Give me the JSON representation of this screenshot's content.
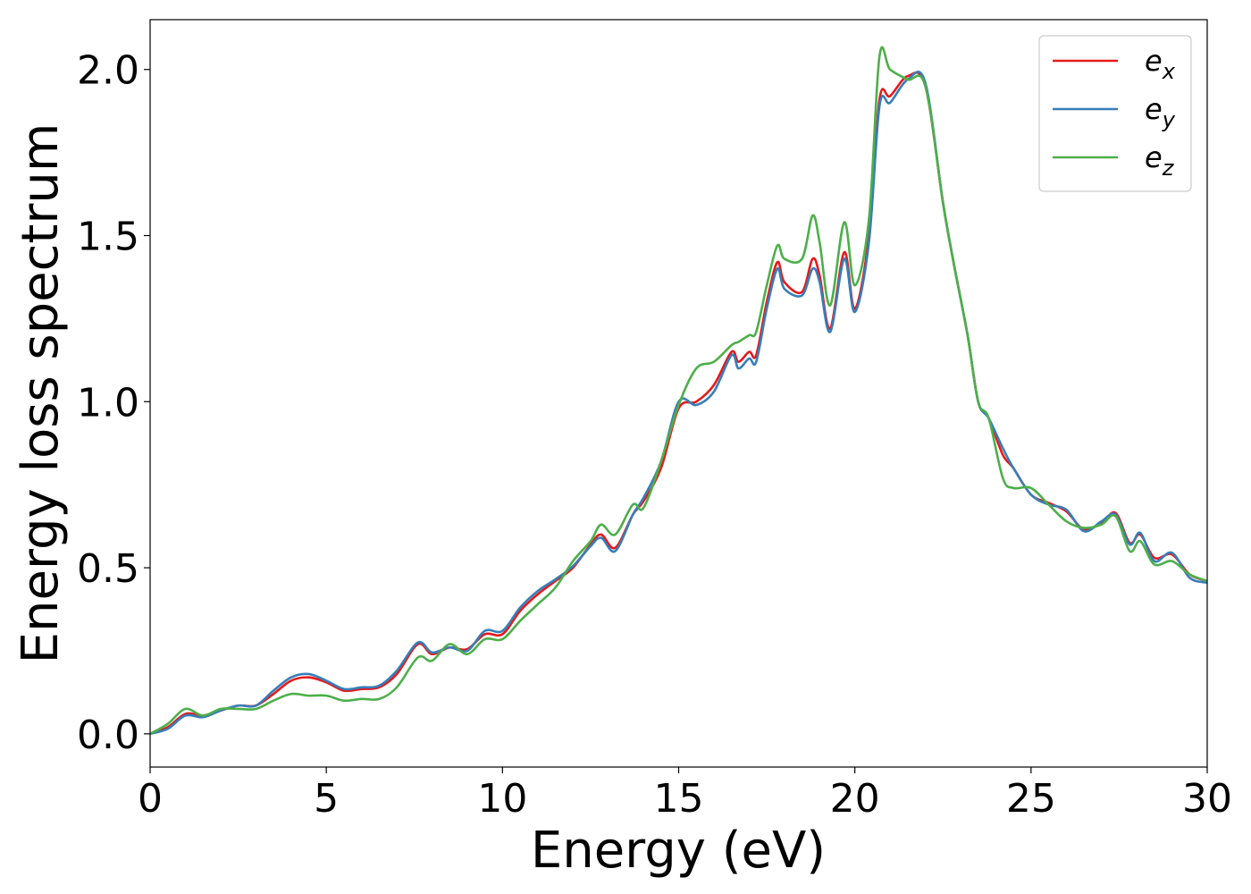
{
  "chart_data": {
    "type": "line",
    "title": "",
    "xlabel": "Energy (eV)",
    "ylabel": "Energy loss spectrum",
    "xlim": [
      0,
      30
    ],
    "ylim": [
      -0.1,
      2.15
    ],
    "xticks": [
      0,
      5,
      10,
      15,
      20,
      25,
      30
    ],
    "xtick_labels": [
      "0",
      "5",
      "10",
      "15",
      "20",
      "25",
      "30"
    ],
    "yticks": [
      0.0,
      0.5,
      1.0,
      1.5,
      2.0
    ],
    "ytick_labels": [
      "0.0",
      "0.5",
      "1.0",
      "1.5",
      "2.0"
    ],
    "grid": false,
    "legend_position": "top-right",
    "series": [
      {
        "name": "e_x",
        "base": "e",
        "sub": "x",
        "color": "#e41a1c",
        "points": [
          [
            0,
            0.0
          ],
          [
            0.5,
            0.02
          ],
          [
            1.0,
            0.06
          ],
          [
            1.5,
            0.055
          ],
          [
            2.0,
            0.07
          ],
          [
            2.5,
            0.085
          ],
          [
            3.0,
            0.085
          ],
          [
            3.5,
            0.12
          ],
          [
            4.0,
            0.16
          ],
          [
            4.5,
            0.17
          ],
          [
            5.0,
            0.155
          ],
          [
            5.5,
            0.13
          ],
          [
            6.0,
            0.135
          ],
          [
            6.5,
            0.14
          ],
          [
            7.0,
            0.18
          ],
          [
            7.6,
            0.27
          ],
          [
            8.0,
            0.24
          ],
          [
            8.5,
            0.26
          ],
          [
            9.0,
            0.255
          ],
          [
            9.5,
            0.3
          ],
          [
            10.0,
            0.3
          ],
          [
            10.5,
            0.37
          ],
          [
            11.0,
            0.42
          ],
          [
            11.5,
            0.46
          ],
          [
            12.0,
            0.5
          ],
          [
            12.5,
            0.57
          ],
          [
            12.8,
            0.6
          ],
          [
            13.2,
            0.56
          ],
          [
            13.7,
            0.66
          ],
          [
            14.0,
            0.7
          ],
          [
            14.5,
            0.8
          ],
          [
            15.0,
            0.98
          ],
          [
            15.5,
            1.0
          ],
          [
            16.0,
            1.05
          ],
          [
            16.5,
            1.15
          ],
          [
            16.7,
            1.12
          ],
          [
            17.0,
            1.15
          ],
          [
            17.2,
            1.14
          ],
          [
            17.5,
            1.3
          ],
          [
            17.8,
            1.42
          ],
          [
            18.0,
            1.36
          ],
          [
            18.5,
            1.33
          ],
          [
            18.8,
            1.43
          ],
          [
            19.0,
            1.38
          ],
          [
            19.3,
            1.22
          ],
          [
            19.7,
            1.45
          ],
          [
            20.0,
            1.28
          ],
          [
            20.4,
            1.5
          ],
          [
            20.7,
            1.91
          ],
          [
            21.0,
            1.92
          ],
          [
            21.5,
            1.98
          ],
          [
            22.0,
            1.95
          ],
          [
            22.5,
            1.6
          ],
          [
            22.8,
            1.42
          ],
          [
            23.2,
            1.2
          ],
          [
            23.5,
            1.0
          ],
          [
            23.8,
            0.95
          ],
          [
            24.2,
            0.84
          ],
          [
            24.5,
            0.8
          ],
          [
            25.0,
            0.72
          ],
          [
            25.5,
            0.695
          ],
          [
            26.0,
            0.67
          ],
          [
            26.5,
            0.615
          ],
          [
            27.0,
            0.635
          ],
          [
            27.4,
            0.665
          ],
          [
            27.8,
            0.575
          ],
          [
            28.1,
            0.6
          ],
          [
            28.5,
            0.53
          ],
          [
            29.0,
            0.54
          ],
          [
            29.5,
            0.48
          ],
          [
            30.0,
            0.46
          ]
        ]
      },
      {
        "name": "e_y",
        "base": "e",
        "sub": "y",
        "color": "#377eb8",
        "points": [
          [
            0,
            0.0
          ],
          [
            0.5,
            0.015
          ],
          [
            1.0,
            0.055
          ],
          [
            1.5,
            0.05
          ],
          [
            2.0,
            0.07
          ],
          [
            2.5,
            0.085
          ],
          [
            3.0,
            0.085
          ],
          [
            3.5,
            0.13
          ],
          [
            4.0,
            0.17
          ],
          [
            4.5,
            0.18
          ],
          [
            5.0,
            0.16
          ],
          [
            5.5,
            0.135
          ],
          [
            6.0,
            0.14
          ],
          [
            6.5,
            0.145
          ],
          [
            7.0,
            0.19
          ],
          [
            7.6,
            0.275
          ],
          [
            8.0,
            0.245
          ],
          [
            8.5,
            0.26
          ],
          [
            9.0,
            0.25
          ],
          [
            9.5,
            0.31
          ],
          [
            10.0,
            0.31
          ],
          [
            10.5,
            0.38
          ],
          [
            11.0,
            0.43
          ],
          [
            11.5,
            0.465
          ],
          [
            12.0,
            0.505
          ],
          [
            12.5,
            0.565
          ],
          [
            12.8,
            0.59
          ],
          [
            13.2,
            0.55
          ],
          [
            13.7,
            0.66
          ],
          [
            14.0,
            0.71
          ],
          [
            14.5,
            0.82
          ],
          [
            15.0,
            1.0
          ],
          [
            15.5,
            0.99
          ],
          [
            16.0,
            1.03
          ],
          [
            16.5,
            1.14
          ],
          [
            16.7,
            1.1
          ],
          [
            17.0,
            1.13
          ],
          [
            17.2,
            1.12
          ],
          [
            17.5,
            1.28
          ],
          [
            17.8,
            1.4
          ],
          [
            18.0,
            1.34
          ],
          [
            18.5,
            1.32
          ],
          [
            18.8,
            1.4
          ],
          [
            19.0,
            1.36
          ],
          [
            19.3,
            1.21
          ],
          [
            19.7,
            1.43
          ],
          [
            20.0,
            1.27
          ],
          [
            20.4,
            1.48
          ],
          [
            20.7,
            1.89
          ],
          [
            21.0,
            1.9
          ],
          [
            21.5,
            1.97
          ],
          [
            22.0,
            1.96
          ],
          [
            22.5,
            1.6
          ],
          [
            22.8,
            1.42
          ],
          [
            23.2,
            1.2
          ],
          [
            23.5,
            1.0
          ],
          [
            23.8,
            0.95
          ],
          [
            24.2,
            0.86
          ],
          [
            24.5,
            0.8
          ],
          [
            25.0,
            0.72
          ],
          [
            25.5,
            0.69
          ],
          [
            26.0,
            0.675
          ],
          [
            26.5,
            0.61
          ],
          [
            27.0,
            0.64
          ],
          [
            27.4,
            0.66
          ],
          [
            27.8,
            0.57
          ],
          [
            28.1,
            0.605
          ],
          [
            28.5,
            0.52
          ],
          [
            29.0,
            0.545
          ],
          [
            29.5,
            0.47
          ],
          [
            30.0,
            0.455
          ]
        ]
      },
      {
        "name": "e_z",
        "base": "e",
        "sub": "z",
        "color": "#4daf4a",
        "points": [
          [
            0,
            0.0
          ],
          [
            0.5,
            0.03
          ],
          [
            1.0,
            0.075
          ],
          [
            1.5,
            0.055
          ],
          [
            2.0,
            0.075
          ],
          [
            2.5,
            0.075
          ],
          [
            3.0,
            0.075
          ],
          [
            3.5,
            0.1
          ],
          [
            4.0,
            0.12
          ],
          [
            4.5,
            0.115
          ],
          [
            5.0,
            0.115
          ],
          [
            5.5,
            0.1
          ],
          [
            6.0,
            0.105
          ],
          [
            6.5,
            0.105
          ],
          [
            7.0,
            0.14
          ],
          [
            7.6,
            0.23
          ],
          [
            8.0,
            0.22
          ],
          [
            8.5,
            0.27
          ],
          [
            9.0,
            0.24
          ],
          [
            9.5,
            0.285
          ],
          [
            10.0,
            0.285
          ],
          [
            10.5,
            0.34
          ],
          [
            11.0,
            0.39
          ],
          [
            11.5,
            0.44
          ],
          [
            12.0,
            0.52
          ],
          [
            12.5,
            0.58
          ],
          [
            12.8,
            0.63
          ],
          [
            13.2,
            0.6
          ],
          [
            13.7,
            0.69
          ],
          [
            14.0,
            0.68
          ],
          [
            14.5,
            0.82
          ],
          [
            15.0,
            0.99
          ],
          [
            15.5,
            1.1
          ],
          [
            16.0,
            1.12
          ],
          [
            16.5,
            1.17
          ],
          [
            16.7,
            1.18
          ],
          [
            17.0,
            1.2
          ],
          [
            17.2,
            1.21
          ],
          [
            17.5,
            1.35
          ],
          [
            17.8,
            1.47
          ],
          [
            18.0,
            1.43
          ],
          [
            18.5,
            1.43
          ],
          [
            18.8,
            1.56
          ],
          [
            19.0,
            1.48
          ],
          [
            19.3,
            1.29
          ],
          [
            19.7,
            1.54
          ],
          [
            20.0,
            1.35
          ],
          [
            20.4,
            1.55
          ],
          [
            20.7,
            2.04
          ],
          [
            21.0,
            2.0
          ],
          [
            21.5,
            1.97
          ],
          [
            22.0,
            1.95
          ],
          [
            22.5,
            1.6
          ],
          [
            22.8,
            1.42
          ],
          [
            23.2,
            1.2
          ],
          [
            23.5,
            1.0
          ],
          [
            23.8,
            0.95
          ],
          [
            24.2,
            0.77
          ],
          [
            24.5,
            0.74
          ],
          [
            25.0,
            0.74
          ],
          [
            25.5,
            0.69
          ],
          [
            26.0,
            0.64
          ],
          [
            26.5,
            0.62
          ],
          [
            27.0,
            0.63
          ],
          [
            27.4,
            0.655
          ],
          [
            27.8,
            0.55
          ],
          [
            28.1,
            0.58
          ],
          [
            28.5,
            0.51
          ],
          [
            29.0,
            0.52
          ],
          [
            29.5,
            0.48
          ],
          [
            30.0,
            0.46
          ]
        ]
      }
    ]
  }
}
